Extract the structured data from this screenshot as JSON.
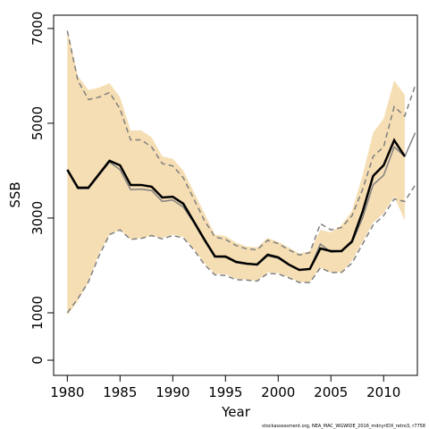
{
  "chart_data": {
    "type": "line",
    "xlabel": "Year",
    "ylabel": "SSB",
    "footnote": "stockassessment.org, NEA_MAC_WGWIDE_2016_mdnyrIDX_retro3, r7758",
    "x": [
      1980,
      1981,
      1982,
      1983,
      1984,
      1985,
      1986,
      1987,
      1988,
      1989,
      1990,
      1991,
      1992,
      1993,
      1994,
      1995,
      1996,
      1997,
      1998,
      1999,
      2000,
      2001,
      2002,
      2003,
      2004,
      2005,
      2006,
      2007,
      2008,
      2009,
      2010,
      2011,
      2012,
      2013
    ],
    "band": {
      "color": "#f5deb3",
      "upper": [
        7000,
        6000,
        5700,
        5750,
        5850,
        5550,
        4850,
        4850,
        4700,
        4300,
        4250,
        4000,
        3550,
        3100,
        2650,
        2620,
        2480,
        2400,
        2380,
        2580,
        2500,
        2380,
        2250,
        2300,
        2750,
        2700,
        2850,
        3150,
        3900,
        4800,
        5100,
        5900,
        5600,
        null
      ],
      "lower": [
        950,
        1250,
        1650,
        2250,
        2650,
        2750,
        2550,
        2580,
        2620,
        2580,
        2650,
        2600,
        2350,
        2050,
        1820,
        1820,
        1720,
        1700,
        1680,
        1850,
        1840,
        1750,
        1650,
        1650,
        1950,
        1850,
        1850,
        2100,
        2500,
        2900,
        3100,
        3450,
        2950,
        null
      ]
    },
    "series": [
      {
        "color": "#808080",
        "dashed": true,
        "width": 1.5,
        "values": [
          6950,
          5900,
          5500,
          5550,
          5650,
          5300,
          4650,
          4650,
          4500,
          4150,
          4100,
          3850,
          3400,
          2950,
          2600,
          2550,
          2420,
          2350,
          2330,
          2530,
          2460,
          2330,
          2220,
          2270,
          2880,
          2750,
          2800,
          3050,
          3600,
          4300,
          4500,
          5350,
          5150,
          5800
        ]
      },
      {
        "color": "#808080",
        "dashed": true,
        "width": 1.5,
        "values": [
          1000,
          1300,
          1650,
          2200,
          2650,
          2750,
          2550,
          2570,
          2630,
          2560,
          2630,
          2580,
          2330,
          2020,
          1800,
          1790,
          1700,
          1690,
          1670,
          1830,
          1820,
          1740,
          1640,
          1640,
          1950,
          1850,
          1850,
          2050,
          2450,
          2850,
          3050,
          3400,
          3350,
          3700
        ]
      },
      {
        "color": "#808080",
        "dashed": false,
        "width": 1.5,
        "values": [
          4000,
          3620,
          3620,
          3900,
          4180,
          4020,
          3600,
          3610,
          3580,
          3350,
          3380,
          3230,
          2900,
          2520,
          2180,
          2170,
          2060,
          2030,
          2010,
          2200,
          2150,
          2010,
          1900,
          1920,
          2450,
          2280,
          2300,
          2480,
          3000,
          3700,
          3900,
          4500,
          4300,
          4800
        ]
      },
      {
        "color": "#000000",
        "dashed": false,
        "width": 2.5,
        "values": [
          4019,
          3640,
          3640,
          3925,
          4207,
          4113,
          3698,
          3698,
          3660,
          3434,
          3450,
          3302,
          2925,
          2547,
          2189,
          2189,
          2075,
          2038,
          2019,
          2226,
          2170,
          2019,
          1906,
          1925,
          2358,
          2302,
          2302,
          2509,
          3132,
          3887,
          4113,
          4642,
          4302,
          null
        ]
      }
    ],
    "xlim": [
      1978.7,
      2013.2
    ],
    "xticks": [
      1980,
      1985,
      1990,
      1995,
      2000,
      2005,
      2010
    ],
    "ylim": [
      -320,
      7280
    ],
    "yticks": [
      0,
      1000,
      3000,
      5000,
      7000
    ]
  }
}
